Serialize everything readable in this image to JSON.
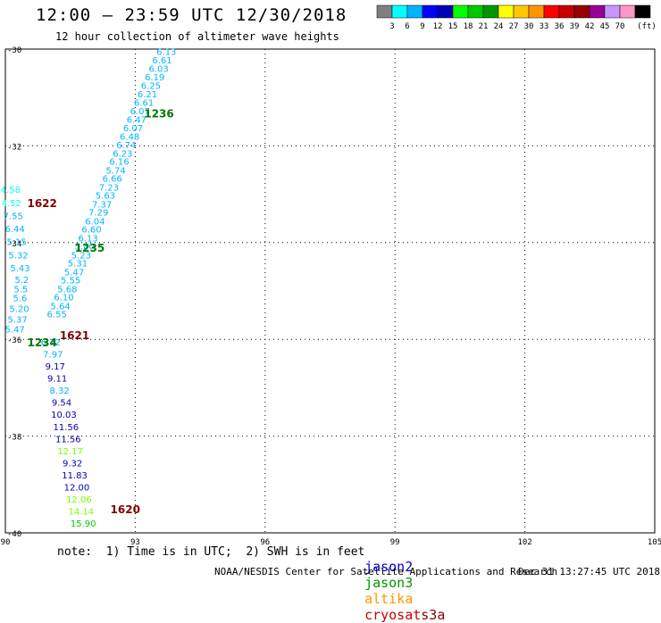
{
  "header": {
    "title": "12:00 — 23:59 UTC 12/30/2018",
    "subtitle": "12 hour collection of altimeter wave heights"
  },
  "legend": {
    "colors": [
      "#808080",
      "#00ffff",
      "#00b4ff",
      "#0000ff",
      "#0000b4",
      "#00ff00",
      "#00c800",
      "#009600",
      "#ffff00",
      "#ffc800",
      "#ff9600",
      "#ff0000",
      "#c80000",
      "#960000",
      "#960096",
      "#c896ff",
      "#ff96c8",
      "#000000"
    ],
    "labels": [
      "3",
      "6",
      "9",
      "12",
      "15",
      "18",
      "21",
      "24",
      "27",
      "30",
      "33",
      "36",
      "39",
      "42",
      "45",
      "70"
    ],
    "unit": "(ft)"
  },
  "map": {
    "x_ticks": [
      "90",
      "93",
      "96",
      "99",
      "102",
      "105"
    ],
    "y_ticks": [
      "-30",
      "-32",
      "-34",
      "-36",
      "-38",
      "-40"
    ]
  },
  "chart_data": {
    "type": "scatter",
    "xlim": [
      90,
      105
    ],
    "ylim": [
      -40,
      -30
    ],
    "points": [
      {
        "lon": 93.72,
        "lat": -30.05,
        "v": "6.13",
        "c": "#00b4ff"
      },
      {
        "lon": 93.62,
        "lat": -30.22,
        "v": "6.61",
        "c": "#00b4ff"
      },
      {
        "lon": 93.54,
        "lat": -30.4,
        "v": "6.03",
        "c": "#00b4ff"
      },
      {
        "lon": 93.45,
        "lat": -30.57,
        "v": "6.19",
        "c": "#00b4ff"
      },
      {
        "lon": 93.36,
        "lat": -30.75,
        "v": "6.25",
        "c": "#00b4ff"
      },
      {
        "lon": 93.28,
        "lat": -30.92,
        "v": "6.21",
        "c": "#00b4ff"
      },
      {
        "lon": 93.2,
        "lat": -31.1,
        "v": "6.61",
        "c": "#00b4ff"
      },
      {
        "lon": 93.11,
        "lat": -31.27,
        "v": "6.07",
        "c": "#00b4ff"
      },
      {
        "lon": 93.03,
        "lat": -31.45,
        "v": "6.47",
        "c": "#00b4ff"
      },
      {
        "lon": 92.95,
        "lat": -31.62,
        "v": "6.07",
        "c": "#00b4ff"
      },
      {
        "lon": 92.87,
        "lat": -31.8,
        "v": "6.48",
        "c": "#00b4ff"
      },
      {
        "lon": 92.79,
        "lat": -31.97,
        "v": "6.74",
        "c": "#00b4ff"
      },
      {
        "lon": 92.71,
        "lat": -32.15,
        "v": "6.23",
        "c": "#00b4ff"
      },
      {
        "lon": 92.63,
        "lat": -32.32,
        "v": "6.16",
        "c": "#00b4ff"
      },
      {
        "lon": 92.55,
        "lat": -32.5,
        "v": "5.74",
        "c": "#00b4ff"
      },
      {
        "lon": 92.47,
        "lat": -32.67,
        "v": "6.66",
        "c": "#00b4ff"
      },
      {
        "lon": 92.39,
        "lat": -32.85,
        "v": "7.23",
        "c": "#00b4ff"
      },
      {
        "lon": 92.31,
        "lat": -33.02,
        "v": "5.63",
        "c": "#00b4ff"
      },
      {
        "lon": 92.23,
        "lat": -33.2,
        "v": "7.37",
        "c": "#00b4ff"
      },
      {
        "lon": 92.15,
        "lat": -33.37,
        "v": "7.29",
        "c": "#00b4ff"
      },
      {
        "lon": 92.07,
        "lat": -33.55,
        "v": "6.04",
        "c": "#00b4ff"
      },
      {
        "lon": 91.99,
        "lat": -33.72,
        "v": "6.60",
        "c": "#00b4ff"
      },
      {
        "lon": 91.91,
        "lat": -33.9,
        "v": "6.13",
        "c": "#00b4ff"
      },
      {
        "lon": 91.83,
        "lat": -34.07,
        "v": "5.80",
        "c": "#00b4ff"
      },
      {
        "lon": 91.75,
        "lat": -34.25,
        "v": "5.23",
        "c": "#00b4ff"
      },
      {
        "lon": 91.67,
        "lat": -34.42,
        "v": "5.31",
        "c": "#00b4ff"
      },
      {
        "lon": 91.59,
        "lat": -34.6,
        "v": "5.47",
        "c": "#00b4ff"
      },
      {
        "lon": 91.51,
        "lat": -34.77,
        "v": "5.55",
        "c": "#00b4ff"
      },
      {
        "lon": 91.43,
        "lat": -34.95,
        "v": "5.68",
        "c": "#00b4ff"
      },
      {
        "lon": 91.35,
        "lat": -35.12,
        "v": "6.10",
        "c": "#00b4ff"
      },
      {
        "lon": 91.27,
        "lat": -35.3,
        "v": "5.64",
        "c": "#00b4ff"
      },
      {
        "lon": 91.19,
        "lat": -35.47,
        "v": "6.55",
        "c": "#00b4ff"
      },
      {
        "lon": 90.12,
        "lat": -32.9,
        "v": "4.58",
        "c": "#00ffff"
      },
      {
        "lon": 90.14,
        "lat": -33.17,
        "v": "4.52",
        "c": "#00ffff"
      },
      {
        "lon": 90.18,
        "lat": -33.44,
        "v": "7.55",
        "c": "#00b4ff"
      },
      {
        "lon": 90.22,
        "lat": -33.71,
        "v": "6.44",
        "c": "#00b4ff"
      },
      {
        "lon": 90.26,
        "lat": -33.98,
        "v": "5.15",
        "c": "#00b4ff"
      },
      {
        "lon": 90.3,
        "lat": -34.25,
        "v": "5.32",
        "c": "#00b4ff"
      },
      {
        "lon": 90.34,
        "lat": -34.52,
        "v": "5.43",
        "c": "#00b4ff"
      },
      {
        "lon": 90.38,
        "lat": -34.76,
        "v": "5.2",
        "c": "#00b4ff"
      },
      {
        "lon": 90.36,
        "lat": -34.95,
        "v": "5.5",
        "c": "#00b4ff"
      },
      {
        "lon": 90.34,
        "lat": -35.14,
        "v": "5.6",
        "c": "#00b4ff"
      },
      {
        "lon": 90.32,
        "lat": -35.36,
        "v": "5.20",
        "c": "#00b4ff"
      },
      {
        "lon": 90.28,
        "lat": -35.58,
        "v": "5.37",
        "c": "#00b4ff"
      },
      {
        "lon": 90.22,
        "lat": -35.78,
        "v": "5.47",
        "c": "#00b4ff"
      },
      {
        "lon": 91.05,
        "lat": -36.05,
        "v": "6.72",
        "c": "#00b4ff"
      },
      {
        "lon": 91.1,
        "lat": -36.3,
        "v": "7.97",
        "c": "#00b4ff"
      },
      {
        "lon": 91.15,
        "lat": -36.55,
        "v": "9.17",
        "c": "#0000b4"
      },
      {
        "lon": 91.2,
        "lat": -36.8,
        "v": "9.11",
        "c": "#0000b4"
      },
      {
        "lon": 91.25,
        "lat": -37.05,
        "v": "8.32",
        "c": "#00b4ff"
      },
      {
        "lon": 91.3,
        "lat": -37.3,
        "v": "9.54",
        "c": "#0000b4"
      },
      {
        "lon": 91.35,
        "lat": -37.55,
        "v": "10.03",
        "c": "#0000b4"
      },
      {
        "lon": 91.4,
        "lat": -37.8,
        "v": "11.56",
        "c": "#0000b4"
      },
      {
        "lon": 91.45,
        "lat": -38.05,
        "v": "11.56",
        "c": "#0000b4"
      },
      {
        "lon": 91.5,
        "lat": -38.3,
        "v": "12.17",
        "c": "#7cfc00"
      },
      {
        "lon": 91.55,
        "lat": -38.55,
        "v": "9.32",
        "c": "#0000b4"
      },
      {
        "lon": 91.6,
        "lat": -38.8,
        "v": "11.83",
        "c": "#0000b4"
      },
      {
        "lon": 91.65,
        "lat": -39.05,
        "v": "12.00",
        "c": "#0000b4"
      },
      {
        "lon": 91.7,
        "lat": -39.3,
        "v": "12.06",
        "c": "#7cfc00"
      },
      {
        "lon": 91.75,
        "lat": -39.55,
        "v": "14.14",
        "c": "#7cfc00"
      },
      {
        "lon": 91.8,
        "lat": -39.8,
        "v": "15.90",
        "c": "#00c800"
      }
    ],
    "time_labels": [
      {
        "lon": 93.55,
        "lat": -31.32,
        "v": "1236",
        "c": "#007800"
      },
      {
        "lon": 90.85,
        "lat": -33.17,
        "v": "1622",
        "c": "#800000"
      },
      {
        "lon": 91.95,
        "lat": -34.1,
        "v": "1235",
        "c": "#007800"
      },
      {
        "lon": 91.6,
        "lat": -35.9,
        "v": "1621",
        "c": "#800000"
      },
      {
        "lon": 90.85,
        "lat": -36.05,
        "v": "1234",
        "c": "#007800"
      },
      {
        "lon": 92.77,
        "lat": -39.5,
        "v": "1620",
        "c": "#800000"
      }
    ]
  },
  "footer": {
    "note": "note:  1) Time is in UTC;  2) SWH is in feet",
    "satellites": [
      {
        "name": "jason2",
        "color": "#0000c8"
      },
      {
        "name": "jason3",
        "color": "#009600"
      },
      {
        "name": "altika",
        "color": "#ff9600"
      },
      {
        "name": "cryosat",
        "color": "#c80000"
      },
      {
        "name": "s3a",
        "color": "#800000"
      }
    ],
    "credit": "NOAA/NESDIS Center for Satellite Applications and Research",
    "timestamp": "Dec 31 13:27:45 UTC 2018"
  }
}
